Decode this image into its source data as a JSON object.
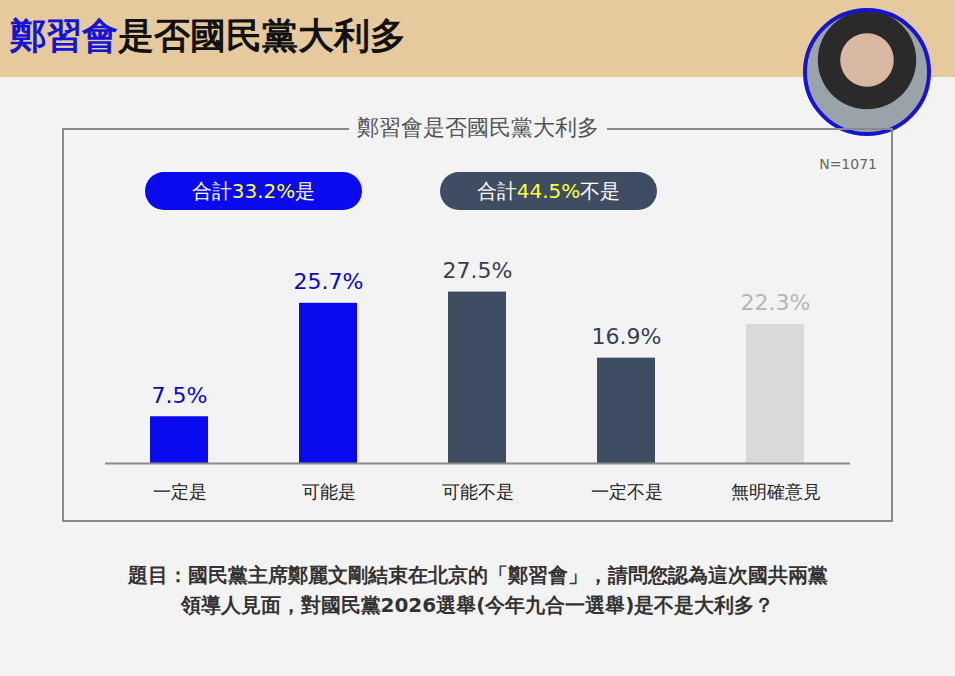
{
  "header": {
    "title_highlight": "鄭習會",
    "title_rest": "是否國民黨大利多"
  },
  "chart_data": {
    "type": "bar",
    "title": "鄭習會是否國民黨大利多",
    "sample_size": {
      "value": 1071,
      "label": "N=1071"
    },
    "summaries": [
      {
        "prefix": "合計",
        "value": 33.2,
        "label": "33.2%",
        "suffix": "是",
        "color": "#0a0aee"
      },
      {
        "prefix": "合計",
        "value": 44.5,
        "label": "44.5%",
        "suffix": "不是",
        "color": "#3f4d63"
      }
    ],
    "categories": [
      "一定是",
      "可能是",
      "可能不是",
      "一定不是",
      "無明確意見"
    ],
    "values": [
      7.5,
      25.7,
      27.5,
      16.9,
      22.3
    ],
    "value_labels": [
      "7.5%",
      "25.7%",
      "27.5%",
      "16.9%",
      "22.3%"
    ],
    "colors": [
      "#0a0aee",
      "#0a0aee",
      "#3f4d63",
      "#3f4d63",
      "#d9d9d9"
    ],
    "ylim": [
      0,
      30
    ],
    "data_labels": true,
    "tick_labels": "x",
    "grid": false
  },
  "caption": [
    "題目：國民黨主席鄭麗文剛結束在北京的「鄭習會」，請問您認為這次國共兩黨",
    "領導人見面，對國民黨2026選舉(今年九合一選舉)是不是大利多？"
  ]
}
